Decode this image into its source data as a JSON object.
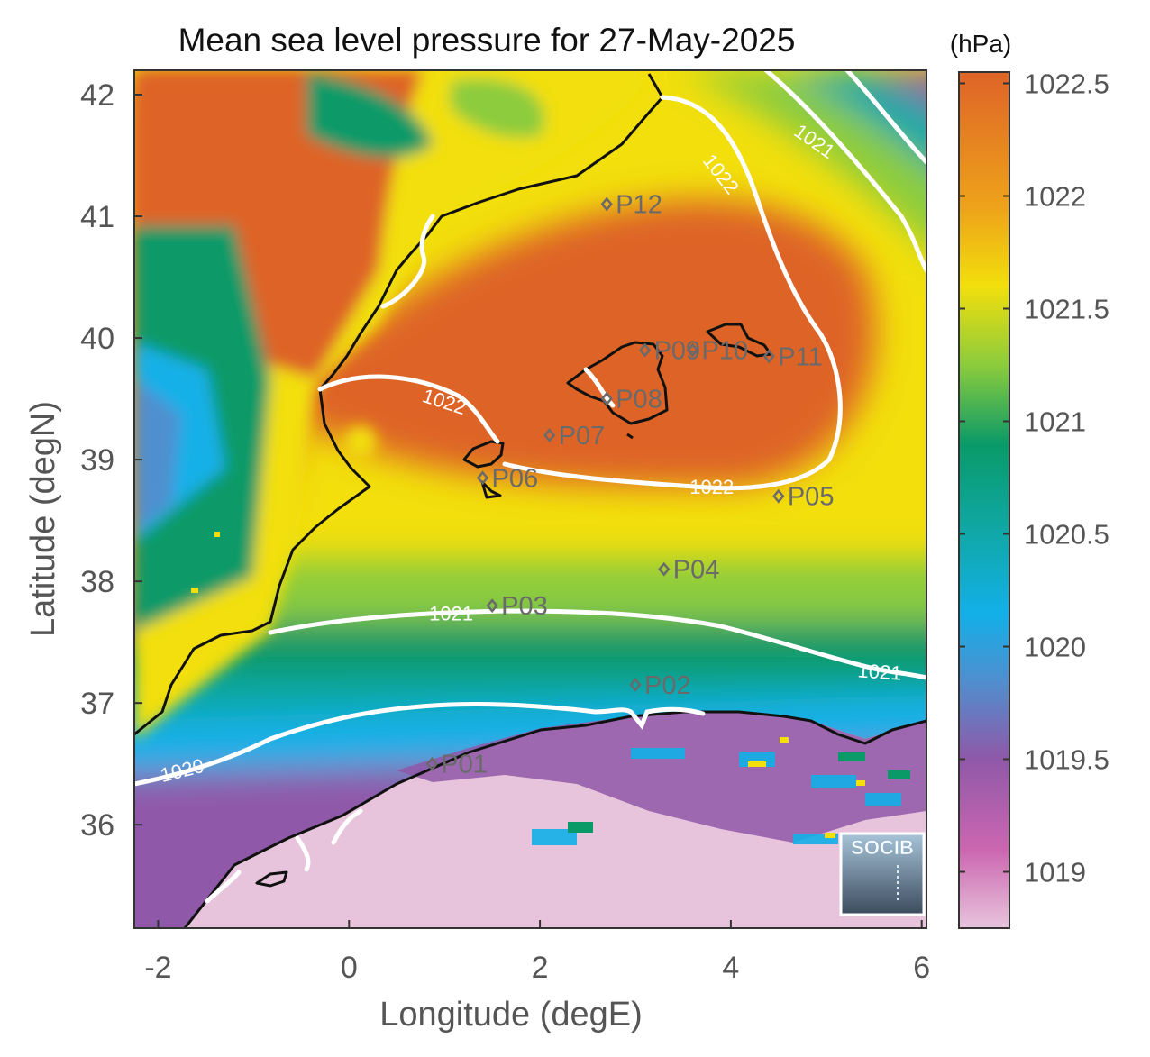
{
  "title": "Mean sea level pressure for 27-May-2025",
  "units_label": "(hPa)",
  "axes": {
    "xlabel": "Longitude (degE)",
    "ylabel": "Latitude (degN)",
    "xlim": [
      -2.25,
      6.05
    ],
    "ylim": [
      35.15,
      42.2
    ],
    "xticks": [
      -2,
      0,
      2,
      4,
      6
    ],
    "yticks": [
      36,
      37,
      38,
      39,
      40,
      41,
      42
    ]
  },
  "colorbar": {
    "min": 1018.75,
    "max": 1022.55,
    "ticks": [
      1019,
      1019.5,
      1020,
      1020.5,
      1021,
      1021.5,
      1022,
      1022.5
    ],
    "stops": [
      {
        "v": 1018.75,
        "color": "#e8c4dc"
      },
      {
        "v": 1019.1,
        "color": "#cc66b0"
      },
      {
        "v": 1019.5,
        "color": "#8f58a8"
      },
      {
        "v": 1019.85,
        "color": "#4f8fcf"
      },
      {
        "v": 1020.15,
        "color": "#12b0e8"
      },
      {
        "v": 1020.5,
        "color": "#10a8a8"
      },
      {
        "v": 1020.9,
        "color": "#0a9a68"
      },
      {
        "v": 1021.25,
        "color": "#8ccc3c"
      },
      {
        "v": 1021.6,
        "color": "#f2df0c"
      },
      {
        "v": 1021.95,
        "color": "#eea21a"
      },
      {
        "v": 1022.55,
        "color": "#de6428"
      }
    ]
  },
  "contour_labels": [
    {
      "text": "1022",
      "lon": 3.9,
      "lat": 41.35,
      "angle": 52
    },
    {
      "text": "1021",
      "lon": 4.88,
      "lat": 41.62,
      "angle": 35
    },
    {
      "text": "1022",
      "lon": 1.0,
      "lat": 39.48,
      "angle": 18
    },
    {
      "text": "1022",
      "lon": 3.8,
      "lat": 38.78,
      "angle": 0
    },
    {
      "text": "1021",
      "lon": 1.07,
      "lat": 37.74,
      "angle": 0
    },
    {
      "text": "1021",
      "lon": 5.56,
      "lat": 37.26,
      "angle": 4
    },
    {
      "text": "1020",
      "lon": -1.75,
      "lat": 36.45,
      "angle": -14
    }
  ],
  "points": [
    {
      "name": "P01",
      "lon": 0.87,
      "lat": 36.5
    },
    {
      "name": "P02",
      "lon": 3.0,
      "lat": 37.15
    },
    {
      "name": "P03",
      "lon": 1.5,
      "lat": 37.8
    },
    {
      "name": "P04",
      "lon": 3.3,
      "lat": 38.1
    },
    {
      "name": "P05",
      "lon": 4.5,
      "lat": 38.7
    },
    {
      "name": "P06",
      "lon": 1.4,
      "lat": 38.85
    },
    {
      "name": "P07",
      "lon": 2.1,
      "lat": 39.2
    },
    {
      "name": "P08",
      "lon": 2.7,
      "lat": 39.5
    },
    {
      "name": "P09",
      "lon": 3.1,
      "lat": 39.9
    },
    {
      "name": "P10",
      "lon": 3.6,
      "lat": 39.9
    },
    {
      "name": "P11",
      "lon": 4.4,
      "lat": 39.85
    },
    {
      "name": "P12",
      "lon": 2.7,
      "lat": 41.1
    }
  ],
  "logo_text": "SOCIB",
  "colors": {
    "contour": "#ffffff",
    "coast": "#111111",
    "marker": "#6a6a6a",
    "frame": "#333333"
  }
}
